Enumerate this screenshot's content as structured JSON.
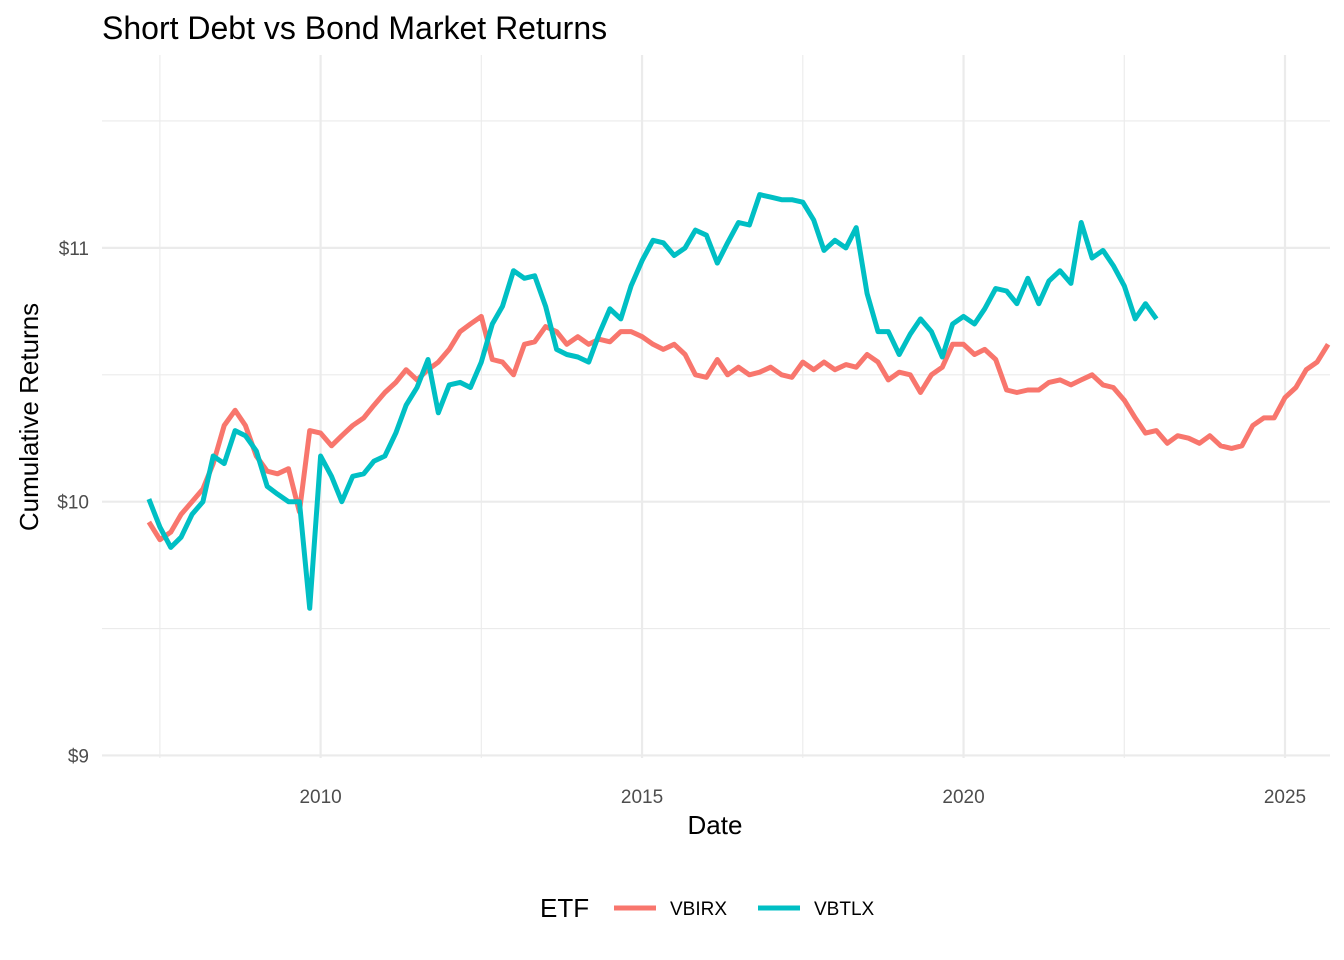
{
  "chart_data": {
    "type": "line",
    "title": "Short Debt vs Bond Market Returns",
    "xlabel": "Date",
    "ylabel": "Cumulative Returns",
    "xlim": [
      2006.6,
      2025.7
    ],
    "ylim": [
      8.99,
      11.76
    ],
    "x_ticks": [
      2010,
      2015,
      2020,
      2025
    ],
    "x_tick_labels": [
      "2010",
      "2015",
      "2020",
      "2025"
    ],
    "x_minor_ticks": [
      2007.5,
      2012.5,
      2017.5,
      2022.5
    ],
    "y_ticks": [
      9,
      10,
      11
    ],
    "y_tick_labels": [
      "$9",
      "$10",
      "$11"
    ],
    "y_minor_ticks": [
      9.5,
      10.5,
      11.5
    ],
    "grid": true,
    "legend": {
      "title": "ETF",
      "position": "bottom"
    },
    "series": [
      {
        "name": "VBIRX",
        "color": "#F8766D",
        "points": [
          [
            2007.33,
            9.92
          ],
          [
            2007.5,
            9.85
          ],
          [
            2007.67,
            9.88
          ],
          [
            2007.83,
            9.95
          ],
          [
            2008.0,
            10.0
          ],
          [
            2008.17,
            10.05
          ],
          [
            2008.33,
            10.15
          ],
          [
            2008.5,
            10.3
          ],
          [
            2008.67,
            10.36
          ],
          [
            2008.83,
            10.3
          ],
          [
            2009.0,
            10.18
          ],
          [
            2009.17,
            10.12
          ],
          [
            2009.33,
            10.11
          ],
          [
            2009.5,
            10.13
          ],
          [
            2009.67,
            9.96
          ],
          [
            2009.83,
            10.28
          ],
          [
            2010.0,
            10.27
          ],
          [
            2010.17,
            10.22
          ],
          [
            2010.33,
            10.26
          ],
          [
            2010.5,
            10.3
          ],
          [
            2010.67,
            10.33
          ],
          [
            2010.83,
            10.38
          ],
          [
            2011.0,
            10.43
          ],
          [
            2011.17,
            10.47
          ],
          [
            2011.33,
            10.52
          ],
          [
            2011.5,
            10.48
          ],
          [
            2011.67,
            10.52
          ],
          [
            2011.83,
            10.55
          ],
          [
            2012.0,
            10.6
          ],
          [
            2012.17,
            10.67
          ],
          [
            2012.33,
            10.7
          ],
          [
            2012.5,
            10.73
          ],
          [
            2012.67,
            10.56
          ],
          [
            2012.83,
            10.55
          ],
          [
            2013.0,
            10.5
          ],
          [
            2013.17,
            10.62
          ],
          [
            2013.33,
            10.63
          ],
          [
            2013.5,
            10.69
          ],
          [
            2013.67,
            10.67
          ],
          [
            2013.83,
            10.62
          ],
          [
            2014.0,
            10.65
          ],
          [
            2014.17,
            10.62
          ],
          [
            2014.33,
            10.64
          ],
          [
            2014.5,
            10.63
          ],
          [
            2014.67,
            10.67
          ],
          [
            2014.83,
            10.67
          ],
          [
            2015.0,
            10.65
          ],
          [
            2015.17,
            10.62
          ],
          [
            2015.33,
            10.6
          ],
          [
            2015.5,
            10.62
          ],
          [
            2015.67,
            10.58
          ],
          [
            2015.83,
            10.5
          ],
          [
            2016.0,
            10.49
          ],
          [
            2016.17,
            10.56
          ],
          [
            2016.33,
            10.5
          ],
          [
            2016.5,
            10.53
          ],
          [
            2016.67,
            10.5
          ],
          [
            2016.83,
            10.51
          ],
          [
            2017.0,
            10.53
          ],
          [
            2017.17,
            10.5
          ],
          [
            2017.33,
            10.49
          ],
          [
            2017.5,
            10.55
          ],
          [
            2017.67,
            10.52
          ],
          [
            2017.83,
            10.55
          ],
          [
            2018.0,
            10.52
          ],
          [
            2018.17,
            10.54
          ],
          [
            2018.33,
            10.53
          ],
          [
            2018.5,
            10.58
          ],
          [
            2018.67,
            10.55
          ],
          [
            2018.83,
            10.48
          ],
          [
            2019.0,
            10.51
          ],
          [
            2019.17,
            10.5
          ],
          [
            2019.33,
            10.43
          ],
          [
            2019.5,
            10.5
          ],
          [
            2019.67,
            10.53
          ],
          [
            2019.83,
            10.62
          ],
          [
            2020.0,
            10.62
          ],
          [
            2020.17,
            10.58
          ],
          [
            2020.33,
            10.6
          ],
          [
            2020.5,
            10.56
          ],
          [
            2020.67,
            10.44
          ],
          [
            2020.83,
            10.43
          ],
          [
            2021.0,
            10.44
          ],
          [
            2021.17,
            10.44
          ],
          [
            2021.33,
            10.47
          ],
          [
            2021.5,
            10.48
          ],
          [
            2021.67,
            10.46
          ],
          [
            2021.83,
            10.48
          ],
          [
            2022.0,
            10.5
          ],
          [
            2022.17,
            10.46
          ],
          [
            2022.33,
            10.45
          ],
          [
            2022.5,
            10.4
          ],
          [
            2022.67,
            10.33
          ],
          [
            2022.83,
            10.27
          ],
          [
            2023.0,
            10.28
          ],
          [
            2023.17,
            10.23
          ],
          [
            2023.33,
            10.26
          ],
          [
            2023.5,
            10.25
          ],
          [
            2023.67,
            10.23
          ],
          [
            2023.83,
            10.26
          ],
          [
            2024.0,
            10.22
          ],
          [
            2024.17,
            10.21
          ],
          [
            2024.33,
            10.22
          ],
          [
            2024.5,
            10.3
          ],
          [
            2024.67,
            10.33
          ],
          [
            2024.83,
            10.33
          ],
          [
            2025.0,
            10.41
          ],
          [
            2025.17,
            10.45
          ],
          [
            2025.33,
            10.52
          ],
          [
            2025.5,
            10.55
          ],
          [
            2025.67,
            10.62
          ],
          [
            2025.83,
            10.6
          ],
          [
            2026.0,
            10.6
          ]
        ]
      },
      {
        "name": "VBTLX",
        "color": "#00BFC4",
        "points": [
          [
            2007.33,
            10.01
          ],
          [
            2007.5,
            9.9
          ],
          [
            2007.67,
            9.82
          ],
          [
            2007.83,
            9.86
          ],
          [
            2008.0,
            9.95
          ],
          [
            2008.17,
            10.0
          ],
          [
            2008.33,
            10.18
          ],
          [
            2008.5,
            10.15
          ],
          [
            2008.67,
            10.28
          ],
          [
            2008.83,
            10.26
          ],
          [
            2009.0,
            10.2
          ],
          [
            2009.17,
            10.06
          ],
          [
            2009.33,
            10.03
          ],
          [
            2009.5,
            10.0
          ],
          [
            2009.67,
            10.0
          ],
          [
            2009.83,
            9.58
          ],
          [
            2010.0,
            10.18
          ],
          [
            2010.17,
            10.1
          ],
          [
            2010.33,
            10.0
          ],
          [
            2010.5,
            10.1
          ],
          [
            2010.67,
            10.11
          ],
          [
            2010.83,
            10.16
          ],
          [
            2011.0,
            10.18
          ],
          [
            2011.17,
            10.27
          ],
          [
            2011.33,
            10.38
          ],
          [
            2011.5,
            10.45
          ],
          [
            2011.67,
            10.56
          ],
          [
            2011.83,
            10.35
          ],
          [
            2012.0,
            10.46
          ],
          [
            2012.17,
            10.47
          ],
          [
            2012.33,
            10.45
          ],
          [
            2012.5,
            10.55
          ],
          [
            2012.67,
            10.7
          ],
          [
            2012.83,
            10.77
          ],
          [
            2013.0,
            10.91
          ],
          [
            2013.17,
            10.88
          ],
          [
            2013.33,
            10.89
          ],
          [
            2013.5,
            10.77
          ],
          [
            2013.67,
            10.6
          ],
          [
            2013.83,
            10.58
          ],
          [
            2014.0,
            10.57
          ],
          [
            2014.17,
            10.55
          ],
          [
            2014.33,
            10.66
          ],
          [
            2014.5,
            10.76
          ],
          [
            2014.67,
            10.72
          ],
          [
            2014.83,
            10.85
          ],
          [
            2015.0,
            10.95
          ],
          [
            2015.17,
            11.03
          ],
          [
            2015.33,
            11.02
          ],
          [
            2015.5,
            10.97
          ],
          [
            2015.67,
            11.0
          ],
          [
            2015.83,
            11.07
          ],
          [
            2016.0,
            11.05
          ],
          [
            2016.17,
            10.94
          ],
          [
            2016.33,
            11.02
          ],
          [
            2016.5,
            11.1
          ],
          [
            2016.67,
            11.09
          ],
          [
            2016.83,
            11.21
          ],
          [
            2017.0,
            11.2
          ],
          [
            2017.17,
            11.19
          ],
          [
            2017.33,
            11.19
          ],
          [
            2017.5,
            11.18
          ],
          [
            2017.67,
            11.11
          ],
          [
            2017.83,
            10.99
          ],
          [
            2018.0,
            11.03
          ],
          [
            2018.17,
            11.0
          ],
          [
            2018.33,
            11.08
          ],
          [
            2018.5,
            10.82
          ],
          [
            2018.67,
            10.67
          ],
          [
            2018.83,
            10.67
          ],
          [
            2019.0,
            10.58
          ],
          [
            2019.17,
            10.66
          ],
          [
            2019.33,
            10.72
          ],
          [
            2019.5,
            10.67
          ],
          [
            2019.67,
            10.57
          ],
          [
            2019.83,
            10.7
          ],
          [
            2020.0,
            10.73
          ],
          [
            2020.17,
            10.7
          ],
          [
            2020.33,
            10.76
          ],
          [
            2020.5,
            10.84
          ],
          [
            2020.67,
            10.83
          ],
          [
            2020.83,
            10.78
          ],
          [
            2021.0,
            10.88
          ],
          [
            2021.17,
            10.78
          ],
          [
            2021.33,
            10.87
          ],
          [
            2021.5,
            10.91
          ],
          [
            2021.67,
            10.86
          ],
          [
            2021.83,
            11.1
          ],
          [
            2022.0,
            10.96
          ],
          [
            2022.17,
            10.99
          ],
          [
            2022.33,
            10.93
          ],
          [
            2022.5,
            10.85
          ],
          [
            2022.67,
            10.72
          ],
          [
            2022.83,
            10.78
          ],
          [
            2023.0,
            10.72
          ]
        ]
      }
    ]
  }
}
